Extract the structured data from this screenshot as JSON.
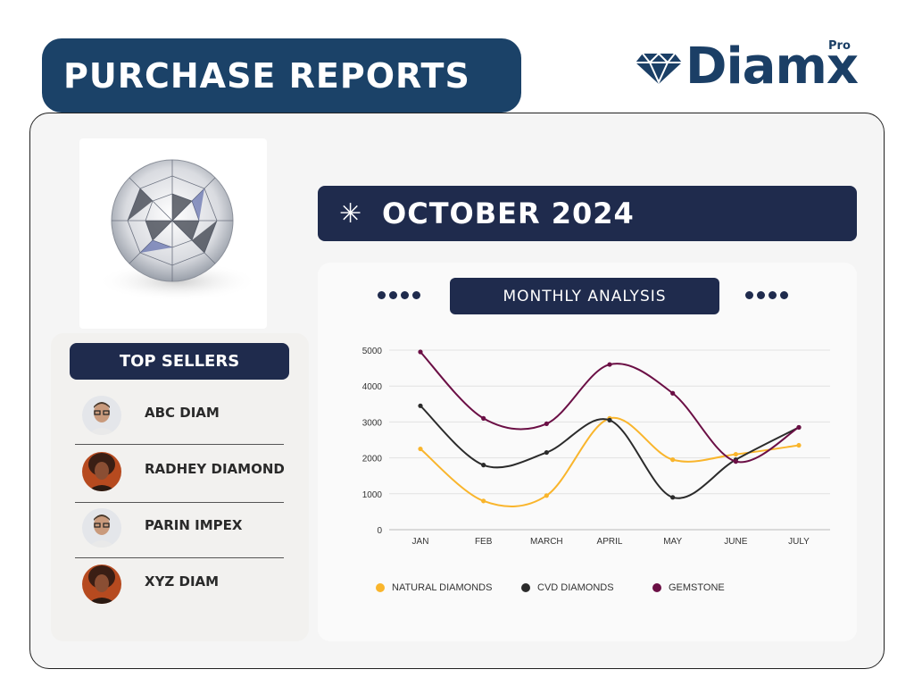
{
  "header": {
    "title": "PURCHASE REPORTS"
  },
  "brand": {
    "name": "Diamx",
    "badge": "Pro",
    "icon": "diamond-icon",
    "color": "#1b3f66"
  },
  "period": {
    "icon": "asterisk-icon",
    "label": "OCTOBER 2024"
  },
  "top_sellers": {
    "title": "TOP SELLERS",
    "items": [
      {
        "name": "ABC DIAM",
        "avatar": "man-avatar"
      },
      {
        "name": "RADHEY DIAMOND",
        "avatar": "woman-avatar"
      },
      {
        "name": "PARIN IMPEX",
        "avatar": "man-avatar"
      },
      {
        "name": "XYZ DIAM",
        "avatar": "woman-avatar"
      }
    ]
  },
  "chart_panel": {
    "title": "MONTHLY  ANALYSIS"
  },
  "colors": {
    "navy": "#1f2b4d",
    "natural": "#f9b52c",
    "cvd": "#2b2b2b",
    "gemstone": "#6b0f45"
  },
  "chart_data": {
    "type": "line",
    "title": "MONTHLY  ANALYSIS",
    "categories": [
      "JAN",
      "FEB",
      "MARCH",
      "APRIL",
      "MAY",
      "JUNE",
      "JULY"
    ],
    "y_ticks": [
      "0",
      "1000",
      "2000",
      "3000",
      "4000",
      "5000"
    ],
    "ylim": [
      0,
      5000
    ],
    "grid": true,
    "legend_position": "bottom",
    "series": [
      {
        "name": "NATURAL DIAMONDS",
        "color": "#f9b52c",
        "values": [
          2250,
          800,
          950,
          3100,
          1950,
          2100,
          2350
        ]
      },
      {
        "name": "CVD DIAMONDS",
        "color": "#2b2b2b",
        "values": [
          3450,
          1800,
          2150,
          3050,
          900,
          1950,
          2850
        ]
      },
      {
        "name": "GEMSTONE",
        "color": "#6b0f45",
        "values": [
          4950,
          3100,
          2950,
          4600,
          3800,
          1900,
          2850
        ]
      }
    ]
  }
}
